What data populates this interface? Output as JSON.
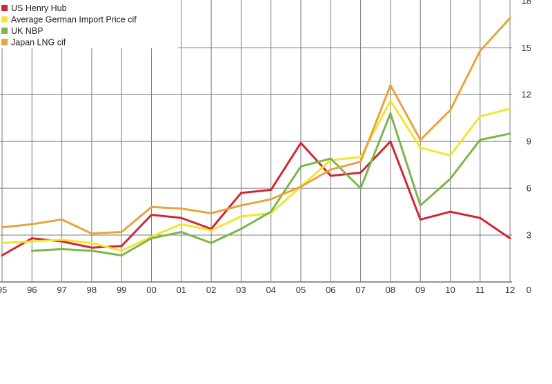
{
  "chart_data": {
    "type": "line",
    "title": "",
    "xlabel": "",
    "ylabel": "",
    "categories": [
      "95",
      "96",
      "97",
      "98",
      "99",
      "00",
      "01",
      "02",
      "03",
      "04",
      "05",
      "06",
      "07",
      "08",
      "09",
      "10",
      "11",
      "12"
    ],
    "ylim": [
      0,
      18
    ],
    "y_ticks": [
      "0",
      "3",
      "6",
      "9",
      "12",
      "15",
      "18"
    ],
    "grid": true,
    "legend_position": "top-left",
    "series": [
      {
        "name": "US Henry Hub",
        "color": "#d22630",
        "values": [
          1.7,
          2.8,
          2.6,
          2.2,
          2.3,
          4.3,
          4.1,
          3.4,
          5.7,
          5.9,
          8.9,
          6.8,
          7.0,
          9.0,
          4.0,
          4.5,
          4.1,
          2.8
        ]
      },
      {
        "name": "Average German Import Price cif",
        "color": "#f4e42c",
        "values": [
          2.5,
          2.6,
          2.7,
          2.5,
          2.0,
          2.9,
          3.7,
          3.3,
          4.2,
          4.4,
          6.1,
          7.8,
          8.0,
          11.6,
          8.6,
          8.1,
          10.6,
          11.1
        ]
      },
      {
        "name": "UK NBP",
        "color": "#7ab648",
        "values": [
          null,
          2.0,
          2.1,
          2.0,
          1.7,
          2.8,
          3.2,
          2.5,
          3.4,
          4.5,
          7.4,
          7.9,
          6.0,
          10.8,
          4.9,
          6.6,
          9.1,
          9.5
        ]
      },
      {
        "name": "Japan LNG cif",
        "color": "#e8a33d",
        "values": [
          3.5,
          3.7,
          4.0,
          3.1,
          3.2,
          4.8,
          4.7,
          4.4,
          4.9,
          5.3,
          6.1,
          7.2,
          7.7,
          12.6,
          9.1,
          11.0,
          14.8,
          16.9
        ]
      }
    ]
  }
}
